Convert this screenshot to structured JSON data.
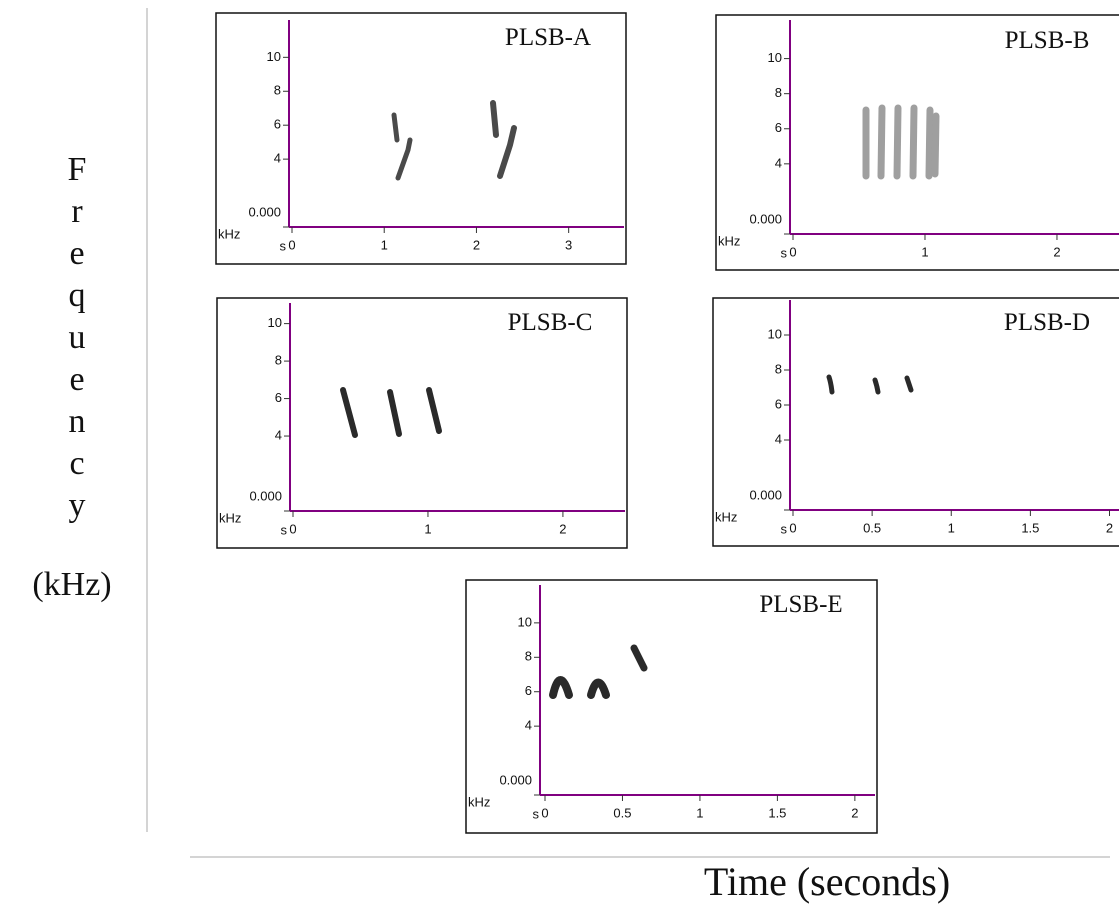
{
  "y_axis_label": {
    "word": "Frequency",
    "unit": "(kHz)"
  },
  "x_axis_label": "Time (seconds)",
  "chart_data": [
    {
      "type": "spectrogram",
      "title": "PLSB-A",
      "x_label": "s",
      "y_label": "kHz",
      "xlim": [
        0,
        3.6
      ],
      "xticks": [
        0,
        1,
        2,
        3
      ],
      "ylim": [
        0,
        12.2
      ],
      "yticks": [
        {
          "value": 0,
          "label": "0.000"
        },
        4,
        6,
        8,
        10
      ]
    },
    {
      "type": "spectrogram",
      "title": "PLSB-B",
      "x_label": "s",
      "y_label": "kHz",
      "xlim": [
        0,
        2.47
      ],
      "xticks": [
        0,
        1,
        2
      ],
      "ylim": [
        0,
        12.2
      ],
      "yticks": [
        {
          "value": 0,
          "label": "0.000"
        },
        4,
        6,
        8,
        10
      ]
    },
    {
      "type": "spectrogram",
      "title": "PLSB-C",
      "x_label": "s",
      "y_label": "kHz",
      "xlim": [
        0,
        2.46
      ],
      "xticks": [
        0,
        1,
        2
      ],
      "ylim": [
        0,
        11.1
      ],
      "yticks": [
        {
          "value": 0,
          "label": "0.000"
        },
        4,
        6,
        8,
        10
      ]
    },
    {
      "type": "spectrogram",
      "title": "PLSB-D",
      "x_label": "s",
      "y_label": "kHz",
      "xlim": [
        0,
        2.06
      ],
      "xticks": [
        0,
        0.5,
        1,
        1.5,
        2
      ],
      "ylim": [
        0,
        12
      ],
      "yticks": [
        {
          "value": 0,
          "label": "0.000"
        },
        4,
        6,
        8,
        10
      ]
    },
    {
      "type": "spectrogram",
      "title": "PLSB-E",
      "x_label": "s",
      "y_label": "kHz",
      "xlim": [
        0,
        2.13
      ],
      "xticks": [
        0,
        0.5,
        1,
        1.5,
        2
      ],
      "ylim": [
        0,
        12.2
      ],
      "yticks": [
        {
          "value": 0,
          "label": "0.000"
        },
        4,
        6,
        8,
        10
      ]
    }
  ]
}
